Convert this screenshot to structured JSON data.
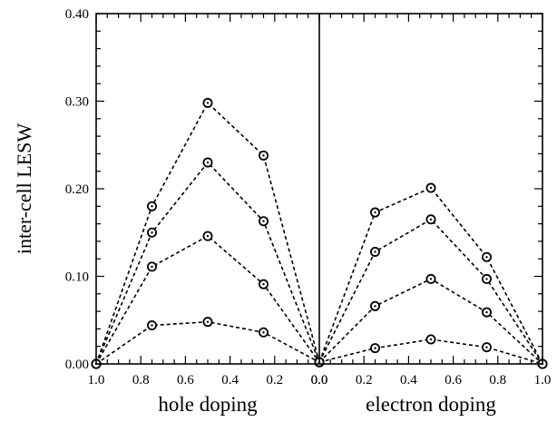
{
  "chart_data": {
    "type": "line",
    "ylabel": "inter-cell LESW",
    "ylim": [
      0,
      0.4
    ],
    "y_ticks": [
      "0.00",
      "0.10",
      "0.20",
      "0.30",
      "0.40"
    ],
    "y_tick_values": [
      0,
      0.1,
      0.2,
      0.3,
      0.4
    ],
    "grid": false,
    "panels": [
      {
        "xlabel": "hole doping",
        "x_reversed": true,
        "xlim": [
          1.0,
          0.0
        ],
        "x_ticks": [
          "1.0",
          "0.8",
          "0.6",
          "0.4",
          "0.2",
          "0.0"
        ],
        "x_tick_values": [
          1.0,
          0.8,
          0.6,
          0.4,
          0.2,
          0.0
        ],
        "series": [
          {
            "x": [
              1.0,
              0.75,
              0.5,
              0.25,
              0.0
            ],
            "values": [
              0.0,
              0.18,
              0.298,
              0.238,
              0.002
            ]
          },
          {
            "x": [
              1.0,
              0.75,
              0.5,
              0.25,
              0.0
            ],
            "values": [
              0.0,
              0.15,
              0.23,
              0.163,
              0.002
            ]
          },
          {
            "x": [
              1.0,
              0.75,
              0.5,
              0.25,
              0.0
            ],
            "values": [
              0.0,
              0.111,
              0.146,
              0.091,
              0.002
            ]
          },
          {
            "x": [
              1.0,
              0.75,
              0.5,
              0.25,
              0.0
            ],
            "values": [
              0.0,
              0.044,
              0.048,
              0.036,
              0.002
            ]
          }
        ]
      },
      {
        "xlabel": "electron doping",
        "x_reversed": false,
        "xlim": [
          0.0,
          1.0
        ],
        "x_ticks": [
          "0.0",
          "0.2",
          "0.4",
          "0.6",
          "0.8",
          "1.0"
        ],
        "x_tick_values": [
          0.0,
          0.2,
          0.4,
          0.6,
          0.8,
          1.0
        ],
        "series": [
          {
            "x": [
              0.0,
              0.25,
              0.5,
              0.75,
              1.0
            ],
            "values": [
              0.002,
              0.173,
              0.201,
              0.122,
              0.0
            ]
          },
          {
            "x": [
              0.0,
              0.25,
              0.5,
              0.75,
              1.0
            ],
            "values": [
              0.002,
              0.128,
              0.165,
              0.097,
              0.0
            ]
          },
          {
            "x": [
              0.0,
              0.25,
              0.5,
              0.75,
              1.0
            ],
            "values": [
              0.002,
              0.066,
              0.097,
              0.059,
              0.0
            ]
          },
          {
            "x": [
              0.0,
              0.25,
              0.5,
              0.75,
              1.0
            ],
            "values": [
              0.002,
              0.018,
              0.028,
              0.019,
              0.0
            ]
          }
        ]
      }
    ]
  }
}
